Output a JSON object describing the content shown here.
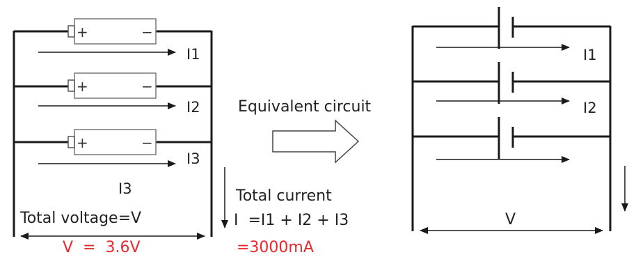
{
  "left": {
    "branches": [
      {
        "current_label": "I1",
        "plus": "+",
        "minus": "−"
      },
      {
        "current_label": "I2",
        "plus": "+",
        "minus": "−"
      },
      {
        "current_label": "I3",
        "plus": "+",
        "minus": "−"
      }
    ],
    "below_label": "I3",
    "voltage_label": "Total voltage=V",
    "voltage_value": "V  =  3.6V"
  },
  "middle": {
    "title": "Equivalent circuit",
    "total_current_label": "Total current",
    "total_current_formula": "I  =I1 + I2 + I3",
    "total_current_value": "=3000mA"
  },
  "right": {
    "branch_labels": [
      "I1",
      "I2"
    ],
    "voltage_label": "V"
  },
  "colors": {
    "line": "#1a1a1a",
    "highlight": "#e8282c",
    "cell_edge": "#777777"
  }
}
